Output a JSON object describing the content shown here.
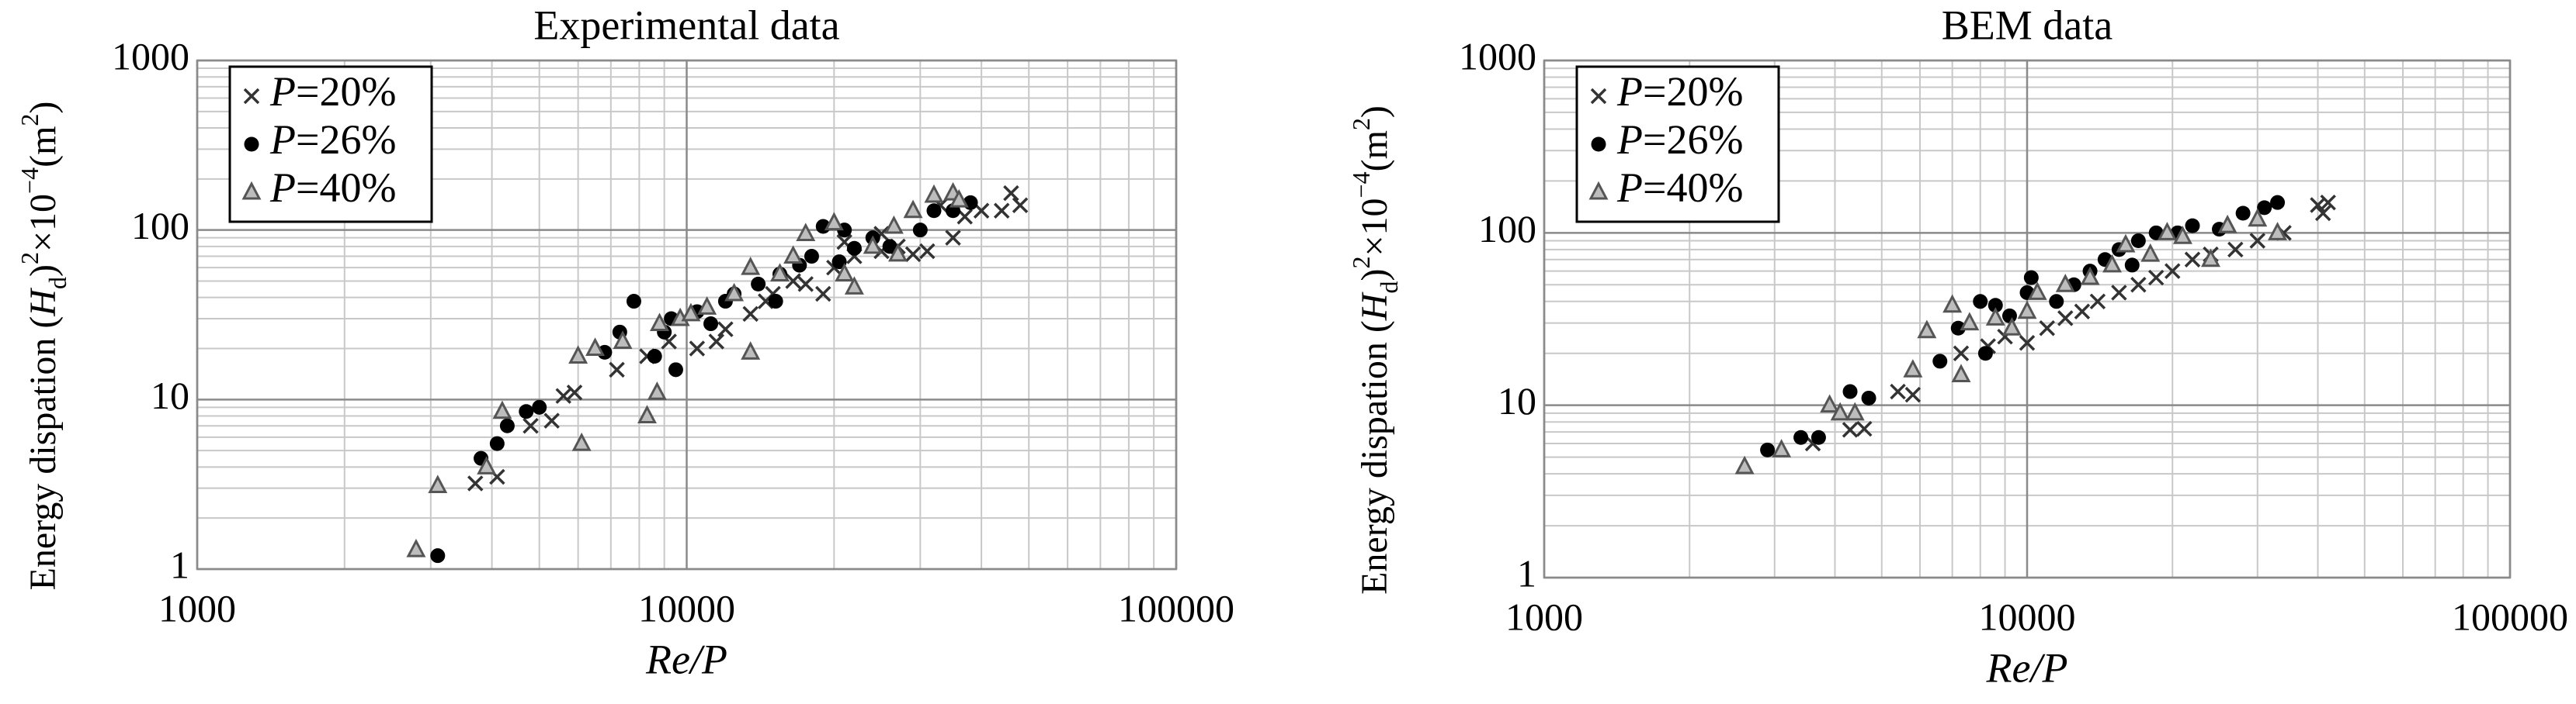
{
  "chart_data": [
    {
      "type": "scatter",
      "title": "Experimental data",
      "xlabel": "Re/P",
      "ylabel": [
        "Energy dispation (",
        "H",
        "d",
        ")",
        "2",
        "×10",
        "−4",
        "(m",
        "2",
        ")"
      ],
      "xscale": "log",
      "yscale": "log",
      "grid": true,
      "legend": "upper left",
      "xlim": [
        1000,
        100000
      ],
      "xticks": [
        1000,
        10000,
        100000
      ],
      "ylim": [
        1,
        1000
      ],
      "yticks": [
        1,
        10,
        100,
        1000
      ],
      "series": [
        {
          "name": "P=20%",
          "marker": "x",
          "color": "#333333",
          "x": [
            3700,
            4100,
            4800,
            5300,
            5600,
            5900,
            7200,
            8300,
            9200,
            10500,
            11500,
            12000,
            13500,
            14500,
            15000,
            16500,
            17500,
            19000,
            20000,
            22000,
            25000,
            27000,
            29000,
            31000,
            35000,
            37000,
            40000,
            44000,
            48000,
            46000,
            33000,
            25000,
            21000
          ],
          "values": [
            3.2,
            3.5,
            7,
            7.5,
            10.5,
            11,
            15,
            18,
            22,
            20,
            22,
            26,
            32,
            38,
            42,
            50,
            48,
            42,
            60,
            70,
            75,
            80,
            72,
            75,
            90,
            120,
            130,
            130,
            140,
            165,
            140,
            95,
            85
          ]
        },
        {
          "name": "P=26%",
          "marker": "circle",
          "color": "#000000",
          "x": [
            3100,
            3800,
            4100,
            4300,
            4700,
            5000,
            6800,
            7300,
            7800,
            8600,
            9000,
            9500,
            9300,
            10500,
            11200,
            12000,
            12500,
            14000,
            15200,
            15500,
            17000,
            18000,
            19000,
            20500,
            22000,
            24000,
            26000,
            30000,
            32000,
            35000,
            38000,
            21000
          ],
          "values": [
            1.2,
            4.5,
            5.5,
            7,
            8.5,
            9,
            19,
            25,
            38,
            18,
            25,
            15,
            30,
            33,
            28,
            38,
            42,
            48,
            38,
            55,
            62,
            70,
            105,
            65,
            78,
            90,
            80,
            100,
            130,
            130,
            145,
            100
          ]
        },
        {
          "name": "P=40%",
          "marker": "triangle",
          "color": "#555555",
          "x": [
            2800,
            3100,
            3900,
            4200,
            6100,
            6000,
            6500,
            7400,
            8300,
            8700,
            8800,
            9700,
            11000,
            12500,
            13500,
            13500,
            15500,
            16500,
            17500,
            20000,
            21000,
            22000,
            24000,
            26500,
            27000,
            29000,
            32000,
            35000,
            36000,
            10200
          ],
          "values": [
            1.3,
            3.1,
            4,
            8.5,
            5.5,
            18,
            20,
            22,
            8,
            11,
            28,
            30,
            35,
            42,
            19,
            60,
            55,
            70,
            95,
            110,
            55,
            46,
            80,
            105,
            72,
            130,
            160,
            165,
            150,
            32
          ]
        }
      ]
    },
    {
      "type": "scatter",
      "title": "BEM data",
      "xlabel": "Re/P",
      "ylabel": [
        "Energy dispation (",
        "H",
        "d",
        ")",
        "2",
        "×10",
        "−4",
        "(m",
        "2",
        ")"
      ],
      "xscale": "log",
      "yscale": "log",
      "grid": true,
      "legend": "upper left",
      "xlim": [
        1000,
        100000
      ],
      "xticks": [
        1000,
        10000,
        100000
      ],
      "ylim": [
        1,
        1000
      ],
      "yticks": [
        1,
        10,
        100,
        1000
      ],
      "series": [
        {
          "name": "P=20%",
          "marker": "x",
          "color": "#333333",
          "x": [
            3600,
            4300,
            4600,
            5400,
            5800,
            7300,
            8300,
            9000,
            10000,
            11000,
            12000,
            13000,
            14000,
            15500,
            17000,
            18500,
            20000,
            22000,
            24000,
            27000,
            30000,
            34000,
            41000,
            42000,
            40000
          ],
          "values": [
            6,
            7.2,
            7.3,
            12,
            11.5,
            20,
            22,
            25,
            23,
            28,
            32,
            35,
            40,
            45,
            50,
            55,
            60,
            70,
            75,
            80,
            90,
            100,
            130,
            150,
            145
          ]
        },
        {
          "name": "P=26%",
          "marker": "circle",
          "color": "#000000",
          "x": [
            2900,
            3400,
            3700,
            4300,
            4700,
            6600,
            7200,
            8000,
            8600,
            9200,
            10000,
            10200,
            11500,
            12500,
            13500,
            14500,
            15500,
            17000,
            18500,
            20500,
            22000,
            25000,
            28000,
            31000,
            33000,
            8200,
            16500
          ],
          "values": [
            5.5,
            6.5,
            6.5,
            12,
            11,
            18,
            28,
            40,
            38,
            33,
            45,
            55,
            40,
            50,
            60,
            70,
            80,
            90,
            100,
            100,
            110,
            105,
            130,
            140,
            150,
            20,
            65
          ]
        },
        {
          "name": "P=40%",
          "marker": "triangle",
          "color": "#555555",
          "x": [
            2600,
            3100,
            3900,
            4100,
            4400,
            5800,
            6200,
            7000,
            7600,
            8600,
            9300,
            10000,
            10500,
            12000,
            13500,
            15000,
            16000,
            18000,
            19500,
            21000,
            24000,
            26000,
            30000,
            33000,
            7300
          ],
          "values": [
            4.4,
            5.5,
            10,
            9,
            9,
            16,
            27,
            38,
            30,
            32,
            28,
            35,
            45,
            50,
            55,
            65,
            85,
            75,
            100,
            95,
            70,
            110,
            120,
            100,
            15
          ]
        }
      ]
    }
  ]
}
